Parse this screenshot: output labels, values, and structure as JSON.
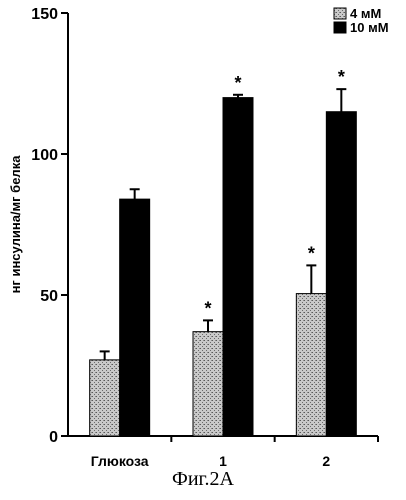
{
  "chart_data": {
    "type": "bar",
    "categories": [
      "Глюкоза",
      "1",
      "2"
    ],
    "series": [
      {
        "name": "4 мМ",
        "values": [
          27,
          37,
          50.5
        ],
        "errors": [
          3,
          4,
          10
        ],
        "significant": [
          false,
          true,
          true
        ],
        "fill": "#b8b8b8"
      },
      {
        "name": "10 мМ",
        "values": [
          84,
          120,
          115
        ],
        "errors": [
          3.5,
          1,
          8
        ],
        "significant": [
          false,
          true,
          true
        ],
        "fill": "#000000"
      }
    ],
    "ylabel": "нг инсулина/мг белка",
    "xlabel": "",
    "ylim": [
      0,
      150
    ],
    "yticks": [
      0,
      50,
      100,
      150
    ],
    "significance_marker": "*",
    "legend_position": "top-right",
    "grid": false
  },
  "caption": "Фиг.2А"
}
